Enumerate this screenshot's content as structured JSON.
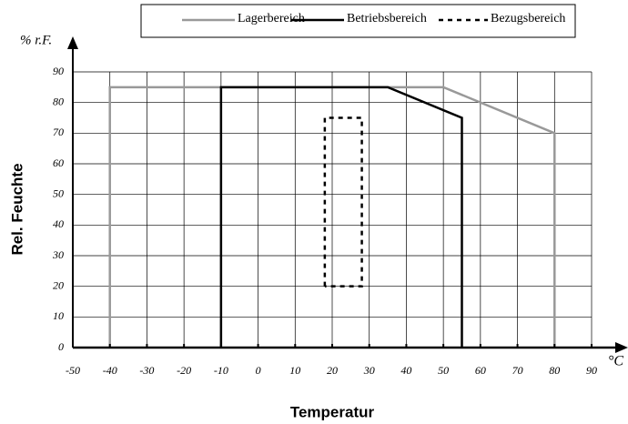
{
  "chart_data": {
    "type": "line",
    "x_unit": "°C",
    "y_unit": "% r.F.",
    "xlabel": "Temperatur",
    "ylabel": "Rel. Feuchte",
    "xlim": [
      -50,
      90
    ],
    "ylim": [
      0,
      90
    ],
    "xticks": [
      -50,
      -40,
      -30,
      -20,
      -10,
      0,
      10,
      20,
      30,
      40,
      50,
      60,
      70,
      80,
      90
    ],
    "yticks": [
      0,
      10,
      20,
      30,
      40,
      50,
      60,
      70,
      80,
      90
    ],
    "grid": true,
    "legend": "top",
    "series": [
      {
        "name": "Lagerbereich",
        "color": "#999999",
        "dash": "solid",
        "x": [
          -40,
          -40,
          50,
          80,
          80
        ],
        "values": [
          0,
          85,
          85,
          70,
          0
        ]
      },
      {
        "name": "Betriebsbereich",
        "color": "#000000",
        "dash": "solid",
        "x": [
          -10,
          -10,
          35,
          55,
          55
        ],
        "values": [
          0,
          85,
          85,
          75,
          0
        ]
      },
      {
        "name": "Bezugsbereich",
        "color": "#000000",
        "dash": "dashed",
        "x": [
          18,
          18,
          28,
          28,
          18
        ],
        "values": [
          20,
          75,
          75,
          20,
          20
        ]
      }
    ]
  }
}
